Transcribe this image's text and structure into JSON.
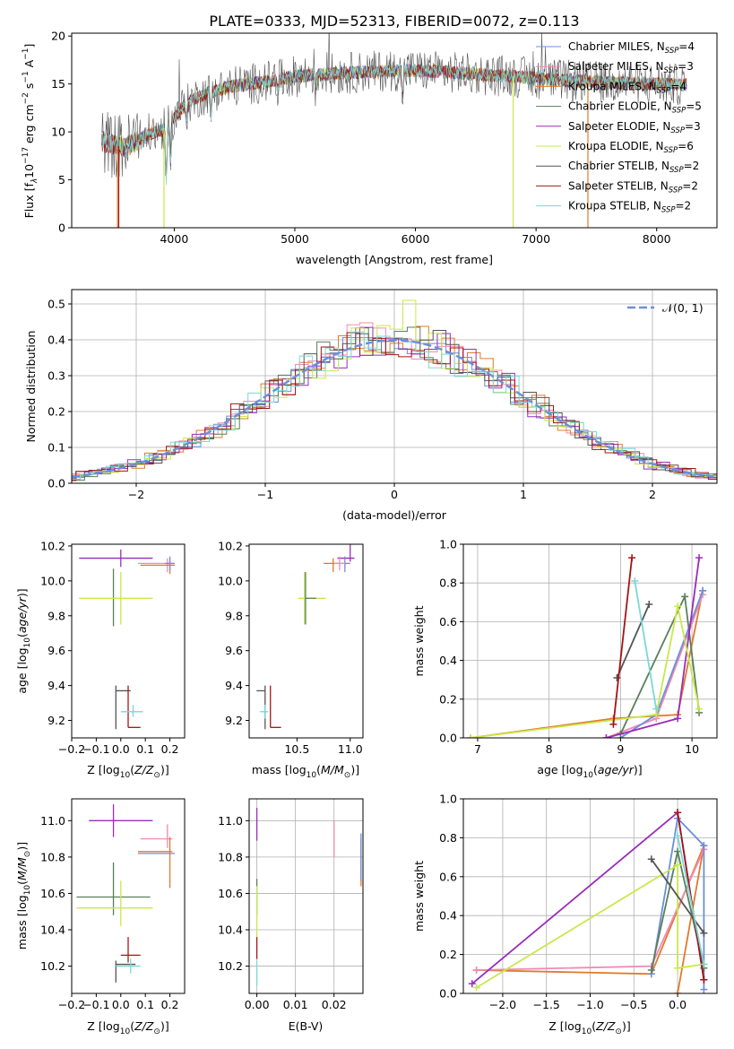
{
  "title": "PLATE=0333, MJD=52313, FIBERID=0072, z=0.113",
  "colors": {
    "chabrier_miles": "#6b8fdc",
    "salpeter_miles": "#f08ab5",
    "kroupa_miles": "#e07a2c",
    "chabrier_elodie": "#5a7f5a",
    "salpeter_elodie": "#9a2db8",
    "kroupa_elodie": "#c9e84a",
    "chabrier_stelib": "#555555",
    "salpeter_stelib": "#a31515",
    "kroupa_stelib": "#7ad8d8",
    "grid": "#b0b0b0",
    "normal": "#6b8fdc"
  },
  "chart_data": [
    {
      "id": "spectrum",
      "type": "line",
      "xlabel": "wavelength [Angstrom, rest frame]",
      "ylabel": "Flux [f$_\\lambda$10$^{-17}$ erg cm$^{-2}$ s$^{-1}$ A$^{-1}$]",
      "ylabel_parts": [
        "Flux [f",
        "λ",
        "10",
        "−17",
        " erg cm",
        "−2",
        " s",
        "−1",
        " A",
        "−1",
        "]"
      ],
      "xlim": [
        3150,
        8500
      ],
      "ylim": [
        0,
        20.3
      ],
      "xticks": [
        4000,
        5000,
        6000,
        7000,
        8000
      ],
      "yticks": [
        0,
        5,
        10,
        15,
        20
      ],
      "legend": [
        {
          "label": "Chabrier MILES, N",
          "sub": "SSP",
          "val": "=4",
          "color": "chabrier_miles"
        },
        {
          "label": "Salpeter MILES, N",
          "sub": "SSP",
          "val": "=3",
          "color": "salpeter_miles"
        },
        {
          "label": "Kroupa MILES, N",
          "sub": "SSP",
          "val": "=4",
          "color": "kroupa_miles"
        },
        {
          "label": "Chabrier ELODIE, N",
          "sub": "SSP",
          "val": "=5",
          "color": "chabrier_elodie"
        },
        {
          "label": "Salpeter ELODIE, N",
          "sub": "SSP",
          "val": "=3",
          "color": "salpeter_elodie"
        },
        {
          "label": "Kroupa ELODIE, N",
          "sub": "SSP",
          "val": "=6",
          "color": "kroupa_elodie"
        },
        {
          "label": "Chabrier STELIB, N",
          "sub": "SSP",
          "val": "=2",
          "color": "chabrier_stelib"
        },
        {
          "label": "Salpeter STELIB, N",
          "sub": "SSP",
          "val": "=2",
          "color": "salpeter_stelib"
        },
        {
          "label": "Kroupa STELIB, N",
          "sub": "SSP",
          "val": "=2",
          "color": "kroupa_stelib"
        }
      ],
      "continuum_x": [
        3400,
        3500,
        3600,
        3700,
        3800,
        3900,
        4000,
        4100,
        4300,
        4500,
        4800,
        5000,
        5200,
        5500,
        5800,
        6000,
        6200,
        6500,
        6800,
        7000,
        7200,
        7500,
        7800,
        8000,
        8250
      ],
      "continuum_y": [
        9.0,
        8.6,
        8.4,
        9.2,
        9.8,
        10.2,
        11.5,
        13.0,
        14.2,
        14.8,
        15.3,
        15.8,
        16.0,
        16.2,
        16.4,
        16.4,
        16.3,
        16.0,
        15.8,
        15.6,
        15.4,
        15.2,
        15.1,
        15.0,
        14.9
      ],
      "features": [
        {
          "x": 3934,
          "depth": 5.5
        },
        {
          "x": 3969,
          "depth": 4.5
        },
        {
          "x": 4101,
          "depth": 1.5
        },
        {
          "x": 4304,
          "depth": 2.5
        },
        {
          "x": 4861,
          "depth": 1.2
        },
        {
          "x": 5175,
          "depth": 2.0
        },
        {
          "x": 5893,
          "depth": 2.5
        }
      ],
      "dropouts": [
        {
          "x": 3530,
          "color": "kroupa_miles"
        },
        {
          "x": 3540,
          "color": "salpeter_stelib"
        },
        {
          "x": 3915,
          "color": "kroupa_elodie"
        },
        {
          "x": 6810,
          "color": "kroupa_elodie"
        },
        {
          "x": 7430,
          "color": "kroupa_miles"
        }
      ]
    },
    {
      "id": "residuals",
      "type": "histogram",
      "xlabel": "(data-model)/error",
      "ylabel": "Normed distribution",
      "xlim": [
        -2.5,
        2.5
      ],
      "ylim": [
        0,
        0.54
      ],
      "xticks": [
        -2,
        -1,
        0,
        1,
        2
      ],
      "yticks": [
        0.0,
        0.1,
        0.2,
        0.3,
        0.4,
        0.5
      ],
      "legend_label": "𝒩(0, 1)",
      "bin_width": 0.1,
      "spiky_bin": {
        "x": 0.1,
        "y": 0.51,
        "color": "kroupa_elodie"
      }
    },
    {
      "id": "z-age",
      "type": "errorbar",
      "xlabel": "Z [log$_{10}$(Z/Z$_\\odot$)]",
      "xlabel_parts": [
        "Z [log",
        "10",
        "(",
        "Z/Z",
        "⊙",
        ")]"
      ],
      "ylabel": "age  [log$_{10}$(age/yr)]",
      "ylabel_parts": [
        "age  [log",
        "10",
        "(",
        "age/yr",
        ")]"
      ],
      "xlim": [
        -0.2,
        0.26
      ],
      "ylim": [
        9.1,
        10.21
      ],
      "xticks": [
        -0.2,
        -0.1,
        0.0,
        0.1,
        0.2
      ],
      "yticks": [
        9.2,
        9.4,
        9.6,
        9.8,
        10.0,
        10.2
      ],
      "points": [
        {
          "color": "salpeter_elodie",
          "x": 0.0,
          "xerr": [
            0.17,
            0.13
          ],
          "y": 10.13,
          "yerr": [
            0.05,
            0.05
          ]
        },
        {
          "color": "salpeter_miles",
          "x": 0.19,
          "xerr": [
            0.12,
            0.02
          ],
          "y": 10.1,
          "yerr": [
            0.05,
            0.03
          ]
        },
        {
          "color": "kroupa_miles",
          "x": 0.2,
          "xerr": [
            0.12,
            0.02
          ],
          "y": 10.09,
          "yerr": [
            0.05,
            0.04
          ]
        },
        {
          "color": "chabrier_miles",
          "x": 0.2,
          "xerr": [
            0.02,
            0.02
          ],
          "y": 10.1,
          "yerr": [
            0.04,
            0.04
          ]
        },
        {
          "color": "chabrier_elodie",
          "x": -0.03,
          "xerr": [
            0.0,
            0.0
          ],
          "y": 9.9,
          "yerr": [
            0.16,
            0.17
          ]
        },
        {
          "color": "kroupa_elodie",
          "x": 0.0,
          "xerr": [
            0.17,
            0.13
          ],
          "y": 9.9,
          "yerr": [
            0.15,
            0.15
          ]
        },
        {
          "color": "chabrier_stelib",
          "x": -0.02,
          "xerr": [
            0.0,
            0.06
          ],
          "y": 9.37,
          "yerr": [
            0.22,
            0.03
          ]
        },
        {
          "color": "salpeter_stelib",
          "x": 0.03,
          "xerr": [
            0.0,
            0.05
          ],
          "y": 9.16,
          "yerr": [
            0.0,
            0.24
          ]
        },
        {
          "color": "kroupa_stelib",
          "x": 0.05,
          "xerr": [
            0.05,
            0.04
          ],
          "y": 9.25,
          "yerr": [
            0.03,
            0.04
          ]
        }
      ]
    },
    {
      "id": "mass-age",
      "type": "errorbar",
      "xlabel": "mass [log$_{10}$(M/M$_\\odot$)]",
      "xlabel_parts": [
        "mass [log",
        "10",
        "(",
        "M/M",
        "⊙",
        ")]"
      ],
      "ylabel": "",
      "xlim": [
        10.05,
        11.12
      ],
      "ylim": [
        9.1,
        10.21
      ],
      "xticks": [
        10.5,
        11.0
      ],
      "yticks": [
        9.2,
        9.4,
        9.6,
        9.8,
        10.0,
        10.2
      ],
      "points": [
        {
          "color": "salpeter_elodie",
          "x": 11.0,
          "xerr": [
            0.12,
            0.04
          ],
          "y": 10.13,
          "yerr": [
            0.02,
            0.12
          ]
        },
        {
          "color": "chabrier_miles",
          "x": 10.95,
          "xerr": [
            0.05,
            0.05
          ],
          "y": 10.1,
          "yerr": [
            0.05,
            0.04
          ]
        },
        {
          "color": "kroupa_miles",
          "x": 10.84,
          "xerr": [
            0.09,
            0.05
          ],
          "y": 10.1,
          "yerr": [
            0.05,
            0.03
          ]
        },
        {
          "color": "salpeter_miles",
          "x": 10.9,
          "xerr": [
            0.05,
            0.05
          ],
          "y": 10.1,
          "yerr": [
            0.04,
            0.04
          ]
        },
        {
          "color": "kroupa_elodie",
          "x": 10.57,
          "xerr": [
            0.06,
            0.2
          ],
          "y": 9.9,
          "yerr": [
            0.15,
            0.15
          ]
        },
        {
          "color": "chabrier_elodie",
          "x": 10.58,
          "xerr": [
            0.0,
            0.1
          ],
          "y": 9.9,
          "yerr": [
            0.15,
            0.15
          ]
        },
        {
          "color": "chabrier_stelib",
          "x": 10.2,
          "xerr": [
            0.08,
            0.0
          ],
          "y": 9.37,
          "yerr": [
            0.22,
            0.03
          ]
        },
        {
          "color": "salpeter_stelib",
          "x": 10.25,
          "xerr": [
            0.0,
            0.1
          ],
          "y": 9.16,
          "yerr": [
            0.0,
            0.24
          ]
        },
        {
          "color": "kroupa_stelib",
          "x": 10.2,
          "xerr": [
            0.05,
            0.03
          ],
          "y": 9.25,
          "yerr": [
            0.04,
            0.04
          ]
        }
      ]
    },
    {
      "id": "age-weight",
      "type": "line",
      "xlabel": "age  [log$_{10}$(age/yr)]",
      "xlabel_parts": [
        "age  [log",
        "10",
        "(",
        "age/yr",
        ")]"
      ],
      "ylabel": "mass weight",
      "xlim": [
        6.8,
        10.35
      ],
      "ylim": [
        0,
        1.0
      ],
      "xticks": [
        7,
        8,
        9,
        10
      ],
      "yticks": [
        0.0,
        0.2,
        0.4,
        0.6,
        0.8,
        1.0
      ],
      "series": [
        {
          "color": "kroupa_miles",
          "x": [
            6.9,
            8.9,
            9.8,
            10.15
          ],
          "y": [
            0.0,
            0.1,
            0.12,
            0.76
          ]
        },
        {
          "color": "salpeter_miles",
          "x": [
            8.8,
            9.5,
            10.15
          ],
          "y": [
            0.0,
            0.1,
            0.74
          ]
        },
        {
          "color": "chabrier_miles",
          "x": [
            9.0,
            9.5,
            10.15
          ],
          "y": [
            0.0,
            0.12,
            0.76
          ]
        },
        {
          "color": "chabrier_elodie",
          "x": [
            9.0,
            9.9,
            10.1
          ],
          "y": [
            0.02,
            0.73,
            0.13
          ]
        },
        {
          "color": "salpeter_elodie",
          "x": [
            8.8,
            9.8,
            10.1
          ],
          "y": [
            0.0,
            0.1,
            0.93
          ]
        },
        {
          "color": "kroupa_elodie",
          "x": [
            6.9,
            9.5,
            9.8,
            10.1
          ],
          "y": [
            0.0,
            0.12,
            0.68,
            0.15
          ]
        },
        {
          "color": "chabrier_stelib",
          "x": [
            8.95,
            9.4
          ],
          "y": [
            0.31,
            0.69
          ]
        },
        {
          "color": "salpeter_stelib",
          "x": [
            8.9,
            9.16
          ],
          "y": [
            0.07,
            0.93
          ]
        },
        {
          "color": "kroupa_stelib",
          "x": [
            9.2,
            9.5
          ],
          "y": [
            0.81,
            0.15
          ]
        }
      ]
    },
    {
      "id": "z-mass",
      "type": "errorbar",
      "xlabel": "Z [log$_{10}$(Z/Z$_\\odot$)]",
      "xlabel_parts": [
        "Z [log",
        "10",
        "(",
        "Z/Z",
        "⊙",
        ")]"
      ],
      "ylabel": "mass [log$_{10}$(M/M$_\\odot$)]",
      "ylabel_parts": [
        "mass [log",
        "10",
        "(",
        "M/M",
        "⊙",
        ")]"
      ],
      "xlim": [
        -0.2,
        0.26
      ],
      "ylim": [
        10.05,
        11.12
      ],
      "xticks": [
        -0.2,
        -0.1,
        0.0,
        0.1,
        0.2
      ],
      "yticks": [
        10.2,
        10.4,
        10.6,
        10.8,
        11.0
      ],
      "points": [
        {
          "color": "salpeter_elodie",
          "x": -0.03,
          "xerr": [
            0.1,
            0.16
          ],
          "y": 11.0,
          "yerr": [
            0.09,
            0.09
          ]
        },
        {
          "color": "salpeter_miles",
          "x": 0.19,
          "xerr": [
            0.11,
            0.02
          ],
          "y": 10.9,
          "yerr": [
            0.05,
            0.08
          ]
        },
        {
          "color": "kroupa_miles",
          "x": 0.2,
          "xerr": [
            0.13,
            0.01
          ],
          "y": 10.83,
          "yerr": [
            0.2,
            0.08
          ]
        },
        {
          "color": "chabrier_miles",
          "x": 0.2,
          "xerr": [
            0.13,
            0.02
          ],
          "y": 10.82,
          "yerr": [
            0.0,
            0.0
          ]
        },
        {
          "color": "chabrier_elodie",
          "x": -0.03,
          "xerr": [
            0.15,
            0.15
          ],
          "y": 10.58,
          "yerr": [
            0.1,
            0.19
          ]
        },
        {
          "color": "kroupa_elodie",
          "x": 0.0,
          "xerr": [
            0.18,
            0.13
          ],
          "y": 10.52,
          "yerr": [
            0.1,
            0.15
          ]
        },
        {
          "color": "salpeter_stelib",
          "x": 0.03,
          "xerr": [
            0.03,
            0.05
          ],
          "y": 10.26,
          "yerr": [
            0.04,
            0.1
          ]
        },
        {
          "color": "chabrier_stelib",
          "x": -0.02,
          "xerr": [
            0.0,
            0.08
          ],
          "y": 10.21,
          "yerr": [
            0.1,
            0.02
          ]
        },
        {
          "color": "kroupa_stelib",
          "x": 0.04,
          "xerr": [
            0.06,
            0.04
          ],
          "y": 10.2,
          "yerr": [
            0.04,
            0.04
          ]
        }
      ]
    },
    {
      "id": "ebv",
      "type": "errorbar",
      "xlabel": "E(B-V)",
      "ylabel": "",
      "xlim": [
        -0.002,
        0.0275
      ],
      "ylim": [
        10.05,
        11.12
      ],
      "xticks": [
        0.0,
        0.01,
        0.02
      ],
      "xticklabels": [
        "0.00",
        "0.01",
        "0.02"
      ],
      "yticks": [
        10.2,
        10.4,
        10.6,
        10.8,
        11.0
      ],
      "points": [
        {
          "color": "salpeter_elodie",
          "x": 0.0,
          "y": 10.98,
          "yerr": [
            0.09,
            0.09
          ]
        },
        {
          "color": "salpeter_miles",
          "x": 0.02,
          "y": 10.9,
          "yerr": [
            0.1,
            0.1
          ]
        },
        {
          "color": "kroupa_miles",
          "x": 0.027,
          "y": 10.77,
          "yerr": [
            0.13,
            0.13
          ]
        },
        {
          "color": "chabrier_miles",
          "x": 0.027,
          "y": 10.8,
          "yerr": [
            0.13,
            0.13
          ]
        },
        {
          "color": "chabrier_elodie",
          "x": 0.0,
          "y": 10.58,
          "yerr": [
            0.1,
            0.1
          ]
        },
        {
          "color": "kroupa_elodie",
          "x": 0.0,
          "y": 10.5,
          "yerr": [
            0.14,
            0.14
          ]
        },
        {
          "color": "salpeter_stelib",
          "x": 0.0,
          "y": 10.3,
          "yerr": [
            0.06,
            0.06
          ]
        },
        {
          "color": "kroupa_stelib",
          "x": 0.0,
          "y": 10.16,
          "yerr": [
            0.07,
            0.07
          ]
        }
      ]
    },
    {
      "id": "z-weight",
      "type": "line",
      "xlabel": "Z [log$_{10}$(Z/Z$_\\odot$)]",
      "xlabel_parts": [
        "Z [log",
        "10",
        "(",
        "Z/Z",
        "⊙",
        ")]"
      ],
      "ylabel": "mass weight",
      "xlim": [
        -2.45,
        0.45
      ],
      "ylim": [
        0,
        1.0
      ],
      "xticks": [
        -2.0,
        -1.5,
        -1.0,
        -0.5,
        0.0
      ],
      "xticklabels": [
        "−2.0",
        "−1.5",
        "−1.0",
        "−0.5",
        "0.0"
      ],
      "yticks": [
        0.0,
        0.2,
        0.4,
        0.6,
        0.8,
        1.0
      ],
      "series": [
        {
          "color": "kroupa_miles",
          "x": [
            -2.3,
            -0.3,
            0.3,
            0.0
          ],
          "y": [
            0.12,
            0.1,
            0.76,
            0.0
          ]
        },
        {
          "color": "salpeter_miles",
          "x": [
            -2.3,
            -0.3,
            0.3
          ],
          "y": [
            0.12,
            0.14,
            0.74
          ]
        },
        {
          "color": "chabrier_miles",
          "x": [
            -0.3,
            0.0,
            0.3,
            0.3
          ],
          "y": [
            0.1,
            0.9,
            0.76,
            0.02
          ]
        },
        {
          "color": "chabrier_elodie",
          "x": [
            -0.3,
            0.0,
            0.3
          ],
          "y": [
            0.12,
            0.73,
            0.13
          ]
        },
        {
          "color": "salpeter_elodie",
          "x": [
            -2.35,
            0.0,
            0.3
          ],
          "y": [
            0.05,
            0.93,
            0.07
          ]
        },
        {
          "color": "kroupa_elodie",
          "x": [
            -2.3,
            0.0,
            0.0,
            0.3
          ],
          "y": [
            0.03,
            0.66,
            0.13,
            0.15
          ]
        },
        {
          "color": "chabrier_stelib",
          "x": [
            -0.3,
            0.3
          ],
          "y": [
            0.69,
            0.31
          ]
        },
        {
          "color": "salpeter_stelib",
          "x": [
            0.0,
            0.3
          ],
          "y": [
            0.93,
            0.07
          ]
        },
        {
          "color": "kroupa_stelib",
          "x": [
            0.0,
            0.3
          ],
          "y": [
            0.81,
            0.15
          ]
        }
      ]
    }
  ]
}
